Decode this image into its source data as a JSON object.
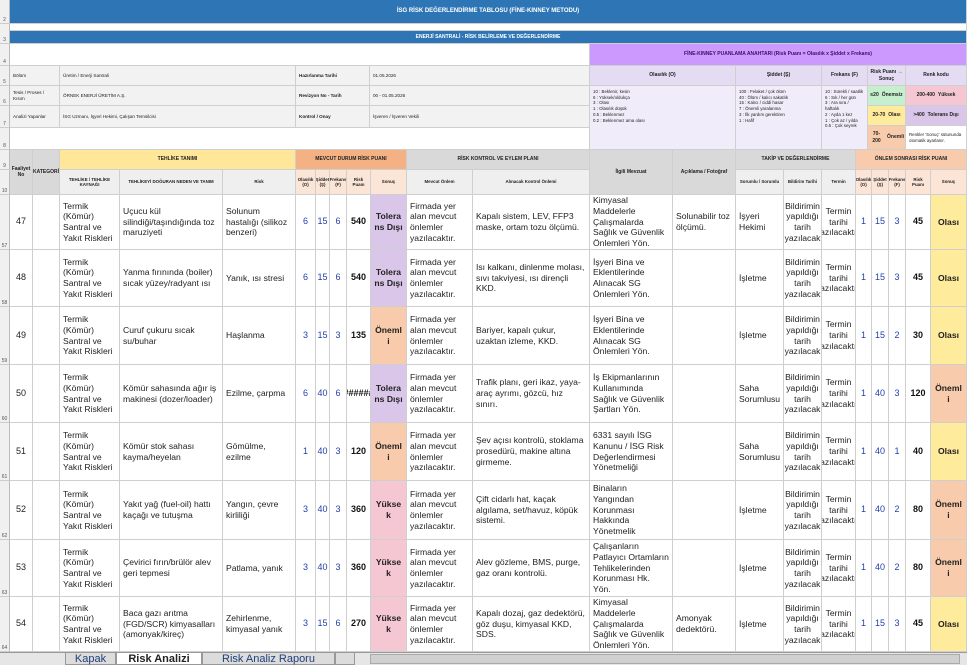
{
  "title": "İSG RİSK DEĞERLENDİRME TABLOSU (FİNE-KINNEY METODU)",
  "subtitle": "ENERJİ SANTRALİ - RİSK BELİRLEME VE DEĞERLENDİRME",
  "info": {
    "labels": [
      "Bölüm",
      "Tesis / Proses / Kısım",
      "Analizi Yapanlar"
    ],
    "values": [
      "Üretim / Enerji Santrali",
      "ÖRNEK ENERJİ ÜRETİM A.Ş.",
      "İSG Uzmanı, İşyeri Hekimi, Çalışan Temsilcisi"
    ],
    "labels2": [
      "Hazırlanma Tarihi",
      "Revizyon No - Tarih",
      "Kontrol / Onay"
    ],
    "values2": [
      "01.05.2026",
      "00 - 01.05.2026",
      "İşveren / İşveren Vekili"
    ]
  },
  "key": {
    "title": "FİNE-KINNEY PUANLAMA ANAHTARI  (Risk Puanı = Olasılık x Şiddet x Frekans)",
    "headers": [
      "Olasılık (O)",
      "Şiddet (Ş)",
      "Frekans (F)",
      "Risk Puanı → Sonuç",
      "Renk kodu"
    ],
    "olasilik": [
      "10 : Beklenir, kesin",
      "6 : Yüksek/oldukça",
      "3 : Olası",
      "1 : Olasılık düşük",
      "0.5 : Beklenmez",
      "0.2 : Beklenmez ama olası"
    ],
    "siddet": [
      "100 : Felaket / çok ölüm",
      "40 : Ölüm / kalıcı sakatlık",
      "15 : Kalıcı / ciddi hasar",
      "7 : Önemli yaralanma",
      "3 : İlk yardım gerektiren",
      "1 : Hafif"
    ],
    "frekans": [
      "10 : Sürekli / saatlik",
      "6 : Sık / her gün",
      "3 : Ara sıra / haftalık",
      "2 : Ayda 1 kez",
      "1 : Çok az / yılda",
      "0.5 : Çok seyrek"
    ],
    "levels": [
      {
        "range": "≤20",
        "label": "Önemsiz",
        "color": "#c6efce"
      },
      {
        "range": "20-70",
        "label": "Olası",
        "color": "#ffeb9c"
      },
      {
        "range": "70-200",
        "label": "Önemli",
        "color": "#f8cbad"
      },
      {
        "range": "200-400",
        "label": "Yüksek",
        "color": "#f4c7d3"
      },
      {
        "range": ">400",
        "label": "Tolerans Dışı",
        "color": "#d9c6e8"
      }
    ],
    "note": "Renkler 'Sonuç' sütununda otomatik ayarlanır."
  },
  "header": {
    "no": "Faaliyet No",
    "groups": [
      "KATEGORİ",
      "TEHLİKE TANIMI",
      "MEVCUT DURUM RİSK PUANI",
      "RİSK KONTROL VE EYLEM PLANI",
      "İlgili Mevzuat",
      "Açıklama / Fotoğraf",
      "TAKİP VE DEĞERLENDİRME",
      "ÖNLEM SONRASI RİSK PUANI"
    ],
    "columns": [
      "TEHLİKE / TEHLİKE KAYNAĞI",
      "TEHLİKEYİ DOĞURAN NEDEN VE TANIM",
      "Risk",
      "Olasılık (O)",
      "Şiddet (Ş)",
      "Frekans (F)",
      "Risk Puanı",
      "Sonuç",
      "Mevcut Önlem",
      "Alınacak Kontrol Önlemi",
      "Sorumlu / Sorumlu",
      "Bildirim Tarihi",
      "Termin",
      "Olasılık (O)",
      "Şiddet (Ş)",
      "Frekans (F)",
      "Risk Puanı",
      "Sonuç"
    ]
  },
  "rows": [
    {
      "no": 47,
      "source": "Termik (Kömür) Santral ve Yakıt Riskleri",
      "hazard": "Uçucu kül silindiği/taşındığında toz maruziyeti",
      "risk": "Solunum hastalığı (silikoz benzeri)",
      "o": 6,
      "s": 15,
      "f": 6,
      "score": 540,
      "result": "Tolerans Dışı",
      "current": "Firmada yer alan mevcut önlemler yazılacaktır.",
      "action": "Kapalı sistem, LEV, FFP3 maske, ortam tozu ölçümü.",
      "law": "Kimyasal Maddelerle Çalışmalarda Sağlık ve Güvenlik Önlemleri Yön.",
      "note": "Solunabilir toz ölçümü.",
      "owner": "İşyeri Hekimi",
      "notify": "Bildirimin yapıldığı tarih yazılacak",
      "deadline": "Termin tarihi yazılacaktır.",
      "o2": 1,
      "s2": 15,
      "f2": 3,
      "score2": 45,
      "result2": "Olası"
    },
    {
      "no": 48,
      "source": "Termik (Kömür) Santral ve Yakıt Riskleri",
      "hazard": "Yanma fırınında (boiler) sıcak yüzey/radyant ısı",
      "risk": "Yanık, ısı stresi",
      "o": 6,
      "s": 15,
      "f": 6,
      "score": 540,
      "result": "Tolerans Dışı",
      "current": "Firmada yer alan mevcut önlemler yazılacaktır.",
      "action": "Isı kalkanı, dinlenme molası, sıvı takviyesi, ısı dirençli KKD.",
      "law": "İşyeri Bina ve Eklentilerinde Alınacak SG Önlemleri Yön.",
      "owner": "İşletme",
      "notify": "Bildirimin yapıldığı tarih yazılacak",
      "deadline": "Termin tarihi yazılacaktır.",
      "o2": 1,
      "s2": 15,
      "f2": 3,
      "score2": 45,
      "result2": "Olası"
    },
    {
      "no": 49,
      "source": "Termik (Kömür) Santral ve Yakıt Riskleri",
      "hazard": "Curuf çukuru sıcak su/buhar",
      "risk": "Haşlanma",
      "o": 3,
      "s": 15,
      "f": 3,
      "score": 135,
      "result": "Önemli",
      "current": "Firmada yer alan mevcut önlemler yazılacaktır.",
      "action": "Bariyer, kapalı çukur, uzaktan izleme, KKD.",
      "law": "İşyeri Bina ve Eklentilerinde Alınacak SG Önlemleri Yön.",
      "owner": "İşletme",
      "notify": "Bildirimin yapıldığı tarih yazılacak",
      "deadline": "Termin tarihi yazılacaktır.",
      "o2": 1,
      "s2": 15,
      "f2": 2,
      "score2": 30,
      "result2": "Olası"
    },
    {
      "no": 50,
      "source": "Termik (Kömür) Santral ve Yakıt Riskleri",
      "hazard": "Kömür sahasında ağır iş makinesi (dozer/loader)",
      "risk": "Ezilme, çarpma",
      "o": 6,
      "s": 40,
      "f": 6,
      "score": "########",
      "result": "Tolerans Dışı",
      "current": "Firmada yer alan mevcut önlemler yazılacaktır.",
      "action": "Trafik planı, geri ikaz, yaya-araç ayrımı, gözcü, hız sınırı.",
      "law": "İş Ekipmanlarının Kullanımında Sağlık ve Güvenlik Şartları Yön.",
      "owner": "Saha Sorumlusu",
      "notify": "Bildirimin yapıldığı tarih yazılacak",
      "deadline": "Termin tarihi yazılacaktır.",
      "o2": 1,
      "s2": 40,
      "f2": 3,
      "score2": 120,
      "result2": "Önemli"
    },
    {
      "no": 51,
      "source": "Termik (Kömür) Santral ve Yakıt Riskleri",
      "hazard": "Kömür stok sahası kayma/heyelan",
      "risk": "Gömülme, ezilme",
      "o": 1,
      "s": 40,
      "f": 3,
      "score": 120,
      "result": "Önemli",
      "current": "Firmada yer alan mevcut önlemler yazılacaktır.",
      "action": "Şev açısı kontrolü, stoklama prosedürü, makine altına girmeme.",
      "law": "6331 sayılı İSG Kanunu / İSG Risk Değerlendirmesi Yönetmeliği",
      "owner": "Saha Sorumlusu",
      "notify": "Bildirimin yapıldığı tarih yazılacak",
      "deadline": "Termin tarihi yazılacaktır.",
      "o2": 1,
      "s2": 40,
      "f2": 1,
      "score2": 40,
      "result2": "Olası"
    },
    {
      "no": 52,
      "source": "Termik (Kömür) Santral ve Yakıt Riskleri",
      "hazard": "Yakıt yağ (fuel-oil) hattı kaçağı ve tutuşma",
      "risk": "Yangın, çevre kirliliği",
      "o": 3,
      "s": 40,
      "f": 3,
      "score": 360,
      "result": "Yüksek",
      "current": "Firmada yer alan mevcut önlemler yazılacaktır.",
      "action": "Çift cidarlı hat, kaçak algılama, set/havuz, köpük sistemi.",
      "law": "Binaların Yangından Korunması Hakkında Yönetmelik",
      "owner": "İşletme",
      "notify": "Bildirimin yapıldığı tarih yazılacak",
      "deadline": "Termin tarihi yazılacaktır.",
      "o2": 1,
      "s2": 40,
      "f2": 2,
      "score2": 80,
      "result2": "Önemli"
    },
    {
      "no": 53,
      "source": "Termik (Kömür) Santral ve Yakıt Riskleri",
      "hazard": "Çevirici fırın/brülör alev geri tepmesi",
      "risk": "Patlama, yanık",
      "o": 3,
      "s": 40,
      "f": 3,
      "score": 360,
      "result": "Yüksek",
      "current": "Firmada yer alan mevcut önlemler yazılacaktır.",
      "action": "Alev gözleme, BMS, purge, gaz oranı kontrolü.",
      "law": "Çalışanların Patlayıcı Ortamların Tehlikelerinden Korunması Hk. Yön.",
      "owner": "İşletme",
      "notify": "Bildirimin yapıldığı tarih yazılacak",
      "deadline": "Termin tarihi yazılacaktır.",
      "o2": 1,
      "s2": 40,
      "f2": 2,
      "score2": 80,
      "result2": "Önemli"
    },
    {
      "no": 54,
      "source": "Termik (Kömür) Santral ve Yakıt Riskleri",
      "hazard": "Baca gazı arıtma (FGD/SCR) kimyasalları (amonyak/kireç)",
      "risk": "Zehirlenme, kimyasal yanık",
      "o": 3,
      "s": 15,
      "f": 6,
      "score": 270,
      "result": "Yüksek",
      "current": "Firmada yer alan mevcut önlemler yazılacaktır.",
      "action": "Kapalı dozaj, gaz dedektörü, göz duşu, kimyasal KKD, SDS.",
      "law": "Kimyasal Maddelerle Çalışmalarda Sağlık ve Güvenlik Önlemleri Yön.",
      "note": "Amonyak dedektörü.",
      "owner": "İşletme",
      "notify": "Bildirimin yapıldığı tarih yazılacak",
      "deadline": "Termin tarihi yazılacaktır.",
      "o2": 1,
      "s2": 15,
      "f2": 3,
      "score2": 45,
      "result2": "Olası"
    }
  ],
  "top_row_numbers": [
    2,
    3,
    4,
    5,
    6,
    7,
    8,
    9,
    10
  ],
  "row_numbers": [
    57,
    58,
    59,
    60,
    61,
    62,
    63,
    64
  ],
  "tabs": [
    "Kapak",
    "Risk Analizi",
    "Risk Analiz Raporu"
  ]
}
